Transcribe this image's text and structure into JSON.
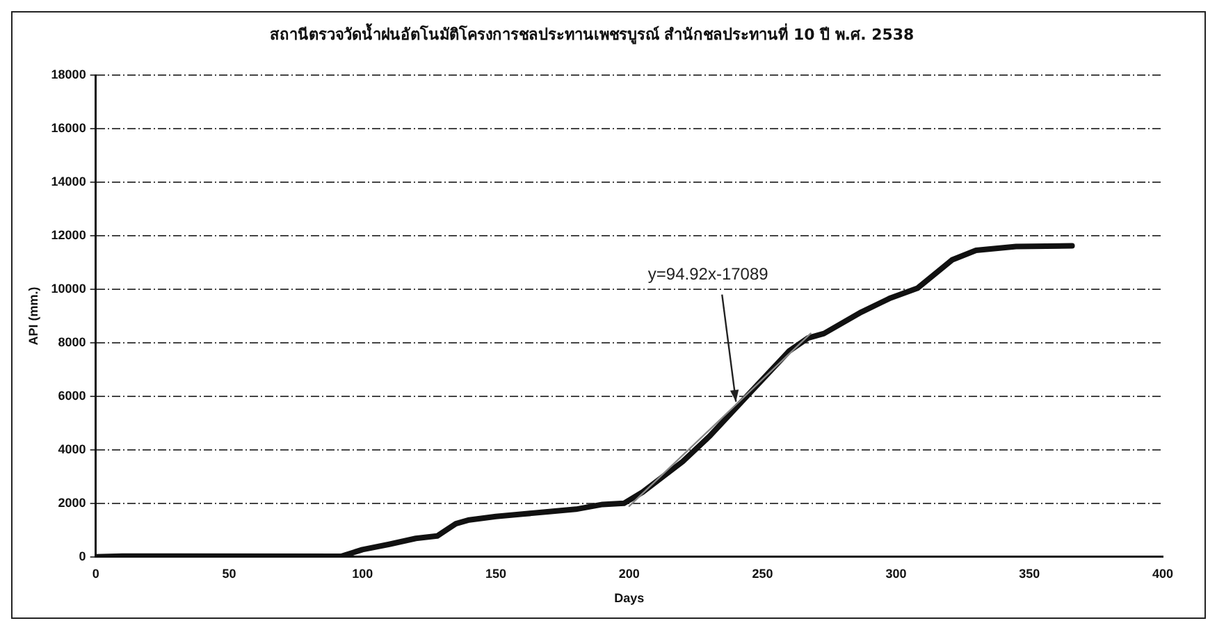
{
  "chart_data": {
    "type": "line",
    "title": "สถานีตรวจวัดน้ำฝนอัตโนมัติโครงการชลประทานเพชรบูรณ์ สำนักชลประทานที่ 10 ปี พ.ศ. 2538",
    "xlabel": "Days",
    "ylabel": "API (mm.)",
    "series": [
      {
        "color": "#111111",
        "x": [
          0,
          10,
          92,
          100,
          110,
          120,
          128,
          135,
          140,
          150,
          160,
          170,
          180,
          190,
          198,
          205,
          220,
          230,
          247,
          260,
          267,
          273,
          287,
          298,
          308,
          321,
          330,
          345,
          366
        ],
        "values": [
          0,
          30,
          20,
          270,
          470,
          690,
          780,
          1240,
          1380,
          1510,
          1600,
          1690,
          1780,
          1960,
          2000,
          2420,
          3560,
          4500,
          6320,
          7700,
          8180,
          8350,
          9150,
          9680,
          10040,
          11100,
          11460,
          11600,
          11630
        ]
      },
      {
        "type": "line",
        "color": "#888888",
        "x": [
          200,
          268
        ],
        "values": [
          1895,
          8350
        ]
      }
    ],
    "annotations": [
      {
        "text": "y=94.92x-17089",
        "x": 240,
        "y": 5800
      }
    ],
    "xlim": [
      0,
      400
    ],
    "xticks": [
      0,
      50,
      100,
      150,
      200,
      250,
      300,
      350,
      400
    ],
    "ylim": [
      0,
      18000
    ],
    "yticks": [
      0,
      2000,
      4000,
      6000,
      8000,
      10000,
      12000,
      14000,
      16000,
      18000
    ],
    "grid": "y",
    "legend": false,
    "marker": "none",
    "line_style": "solid"
  }
}
